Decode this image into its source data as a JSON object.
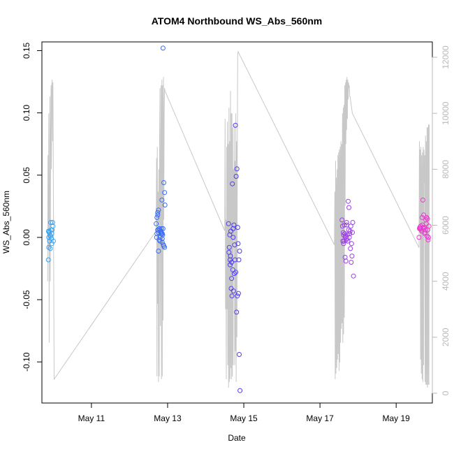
{
  "chart_data": {
    "type": "scatter",
    "title": "ATOM4 Northbound WS_Abs_560nm",
    "xlabel": "Date",
    "ylabel": "WS_Abs_560nm",
    "x_ticks": [
      "May 11",
      "May 13",
      "May 15",
      "May 17",
      "May 19"
    ],
    "x_tick_days": [
      11,
      13,
      15,
      17,
      19
    ],
    "xlim": [
      9.7,
      19.95
    ],
    "y_ticks": [
      "-0.10",
      "-0.05",
      "0.00",
      "0.05",
      "0.10",
      "0.15"
    ],
    "y_tick_values": [
      -0.1,
      -0.05,
      0.0,
      0.05,
      0.1,
      0.15
    ],
    "ylim": [
      -0.133,
      0.157
    ],
    "y2_ticks": [
      "0",
      "2000",
      "4000",
      "6000",
      "8000",
      "10000",
      "12000"
    ],
    "y2_tick_values": [
      0,
      2000,
      4000,
      6000,
      8000,
      10000,
      12000
    ],
    "y2lim": [
      -350,
      12550
    ],
    "grid": false,
    "legend": "none",
    "colors": {
      "day1": "#38a3f0",
      "day2": "#3a6cf5",
      "day3": "#4f3de8",
      "day4": "#9b3ee8",
      "day5": "#e83ccf",
      "line": "#c8c8c8",
      "axis": "#000000",
      "right_axis": "#b9b9b9"
    },
    "series": [
      {
        "color": "#38a3f0",
        "x": [
          9.87,
          9.88,
          9.89,
          9.9,
          9.91,
          9.92,
          9.93,
          9.94,
          9.95,
          9.96,
          9.97,
          9.98,
          9.99,
          10.0,
          9.88,
          9.9,
          9.93,
          9.96,
          9.87
        ],
        "y": [
          -0.018,
          -0.008,
          0.004,
          0.005,
          0.002,
          -0.009,
          0.012,
          0.006,
          -0.001,
          -0.005,
          0.006,
          0.012,
          0.009,
          -0.003,
          0.0,
          -0.003,
          0.001,
          0.003,
          0.005
        ]
      },
      {
        "color": "#3a6cf5",
        "x": [
          12.7,
          12.72,
          12.74,
          12.75,
          12.76,
          12.78,
          12.8,
          12.82,
          12.84,
          12.86,
          12.88,
          12.9,
          12.92,
          12.93,
          12.72,
          12.74,
          12.76,
          12.8,
          12.84,
          12.86,
          12.87,
          12.88,
          12.76,
          12.78,
          12.82,
          12.8,
          12.86,
          12.9,
          12.92,
          12.74,
          12.71,
          12.83,
          12.85,
          12.89
        ],
        "y": [
          0.011,
          0.016,
          0.02,
          0.006,
          0.004,
          0.007,
          0.006,
          0.004,
          0.007,
          0.003,
          0.152,
          0.044,
          0.036,
          0.026,
          0.003,
          0.018,
          0.022,
          -0.003,
          0.003,
          -0.004,
          0.002,
          0.007,
          -0.011,
          -0.002,
          0.005,
          0.0,
          -0.001,
          -0.007,
          -0.008,
          0.006,
          0.0,
          0.003,
          0.03,
          -0.006
        ]
      },
      {
        "color": "#4f3de8",
        "x": [
          14.6,
          14.62,
          14.64,
          14.66,
          14.68,
          14.7,
          14.72,
          14.74,
          14.76,
          14.78,
          14.8,
          14.82,
          14.84,
          14.86,
          14.88,
          14.9,
          14.61,
          14.63,
          14.65,
          14.67,
          14.69,
          14.71,
          14.73,
          14.75,
          14.77,
          14.79,
          14.81,
          14.83,
          14.85,
          14.87,
          14.89,
          14.64,
          14.68,
          14.72
        ],
        "y": [
          0.011,
          -0.008,
          -0.018,
          0.005,
          -0.02,
          0.043,
          0.0,
          0.01,
          -0.006,
          0.09,
          0.049,
          0.055,
          0.008,
          -0.045,
          -0.094,
          -0.123,
          -0.012,
          0.002,
          -0.015,
          -0.041,
          -0.047,
          -0.026,
          -0.043,
          -0.029,
          -0.018,
          -0.028,
          -0.06,
          -0.047,
          -0.005,
          -0.018,
          -0.011,
          -0.022,
          -0.033,
          0.007
        ]
      },
      {
        "color": "#9b3ee8",
        "x": [
          17.58,
          17.6,
          17.62,
          17.64,
          17.66,
          17.68,
          17.7,
          17.72,
          17.74,
          17.76,
          17.78,
          17.8,
          17.82,
          17.84,
          17.86,
          17.88,
          17.59,
          17.61,
          17.63,
          17.65,
          17.67,
          17.69,
          17.71,
          17.73,
          17.75,
          17.77,
          17.79,
          17.81,
          17.83,
          17.85,
          17.62,
          17.66,
          17.7
        ],
        "y": [
          0.014,
          -0.003,
          -0.005,
          0.01,
          -0.016,
          -0.019,
          0.012,
          0.002,
          0.029,
          0.024,
          0.003,
          -0.009,
          -0.02,
          -0.015,
          0.012,
          -0.031,
          0.009,
          0.004,
          -0.003,
          0.003,
          0.001,
          -0.002,
          -0.001,
          -0.003,
          0.006,
          0.0,
          0.005,
          0.009,
          -0.005,
          0.004,
          0.002,
          0.0,
          0.01
        ]
      },
      {
        "color": "#e83ccf",
        "x": [
          19.6,
          19.62,
          19.64,
          19.66,
          19.68,
          19.7,
          19.72,
          19.74,
          19.76,
          19.78,
          19.8,
          19.82,
          19.84,
          19.86,
          19.61,
          19.63,
          19.65,
          19.67,
          19.69,
          19.71,
          19.73,
          19.75,
          19.77,
          19.79,
          19.81,
          19.83,
          19.85
        ],
        "y": [
          0.0,
          0.008,
          0.009,
          0.006,
          0.016,
          0.03,
          0.018,
          0.008,
          0.004,
          0.014,
          0.016,
          0.015,
          -0.002,
          0.009,
          0.007,
          0.007,
          0.007,
          0.005,
          0.01,
          0.008,
          0.007,
          0.003,
          0.006,
          0.011,
          0.001,
          0.006,
          0.0
        ]
      }
    ],
    "line_series": {
      "color": "#c8c8c8",
      "axis": "right",
      "x": [
        9.85,
        9.86,
        9.87,
        9.88,
        9.89,
        9.9,
        9.91,
        9.92,
        9.93,
        9.94,
        9.95,
        9.96,
        9.97,
        9.98,
        9.99,
        10.02,
        12.7,
        12.71,
        12.72,
        12.73,
        12.74,
        12.75,
        12.76,
        12.77,
        12.78,
        12.79,
        12.8,
        12.81,
        12.82,
        12.83,
        12.84,
        12.85,
        12.86,
        12.87,
        12.88,
        12.89,
        12.9,
        12.91,
        12.92,
        12.93,
        14.5,
        14.51,
        14.52,
        14.53,
        14.54,
        14.55,
        14.56,
        14.57,
        14.58,
        14.59,
        14.6,
        14.61,
        14.62,
        14.63,
        14.64,
        14.65,
        14.66,
        14.67,
        14.68,
        14.69,
        14.7,
        14.71,
        14.72,
        14.73,
        14.74,
        14.75,
        14.76,
        14.77,
        14.78,
        14.79,
        14.8,
        14.81,
        14.82,
        14.83,
        14.84,
        14.85,
        17.38,
        17.39,
        17.4,
        17.41,
        17.42,
        17.43,
        17.44,
        17.45,
        17.46,
        17.47,
        17.48,
        17.49,
        17.5,
        17.51,
        17.52,
        17.53,
        17.54,
        17.55,
        17.56,
        17.57,
        17.58,
        17.59,
        17.6,
        17.61,
        17.62,
        17.63,
        17.64,
        17.65,
        17.66,
        17.67,
        17.68,
        17.69,
        17.7,
        17.71,
        17.72,
        17.73,
        17.74,
        17.75,
        17.76,
        17.77,
        17.78,
        17.79,
        17.8,
        17.81,
        17.82,
        17.83,
        17.84,
        17.85,
        19.6,
        19.61,
        19.62,
        19.63,
        19.64,
        19.65,
        19.66,
        19.67,
        19.68,
        19.69,
        19.7,
        19.71,
        19.72,
        19.73,
        19.74,
        19.75,
        19.76,
        19.77,
        19.78,
        19.79,
        19.8,
        19.81,
        19.82,
        19.83,
        19.84,
        19.85,
        19.86,
        19.87
      ],
      "y": [
        4000,
        8500,
        5200,
        10000,
        1800,
        7000,
        10600,
        4000,
        9000,
        11000,
        8000,
        11000,
        11200,
        9000,
        11100,
        500,
        5800,
        8400,
        600,
        8800,
        3200,
        7200,
        400,
        8000,
        600,
        9200,
        10900,
        2400,
        8000,
        11000,
        500,
        11200,
        600,
        11000,
        2600,
        11300,
        6200,
        10000,
        10900,
        10800,
        5800,
        9800,
        3000,
        6200,
        500,
        8800,
        3000,
        9700,
        1000,
        8900,
        200,
        10200,
        400,
        9000,
        500,
        10800,
        900,
        10000,
        500,
        10000,
        600,
        9500,
        1000,
        8000,
        5500,
        9600,
        1000,
        8300,
        1500,
        10000,
        400,
        9000,
        2000,
        8800,
        12100,
        12200,
        5300,
        7200,
        500,
        8300,
        700,
        7700,
        900,
        8000,
        1200,
        8500,
        1400,
        8600,
        800,
        8700,
        1100,
        8800,
        1800,
        9000,
        2300,
        8900,
        2500,
        10000,
        1800,
        10200,
        2100,
        10300,
        2700,
        11000,
        6700,
        11100,
        8900,
        11200,
        9400,
        11300,
        9800,
        11200,
        10500,
        11100,
        10900,
        11000,
        10600,
        10600,
        10500,
        10400,
        10300,
        10200,
        10100,
        10000,
        5200,
        9000,
        6000,
        8700,
        1200,
        8800,
        700,
        8500,
        500,
        8600,
        400,
        8800,
        1000,
        8700,
        7500,
        8500,
        400,
        9200,
        300,
        9000,
        300,
        9500,
        200,
        9500,
        300,
        9600,
        300,
        9600
      ]
    }
  }
}
